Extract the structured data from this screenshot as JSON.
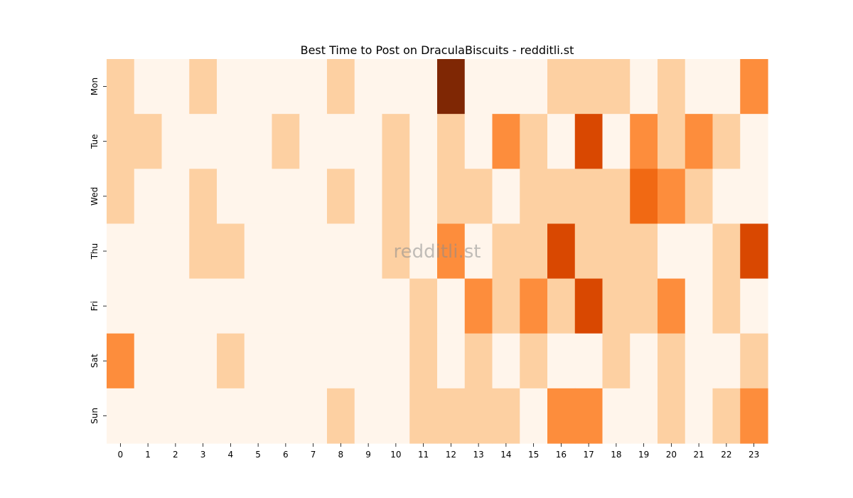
{
  "chart_data": {
    "type": "heatmap",
    "title": "Best Time to Post on DraculaBiscuits - redditli.st",
    "watermark": "redditli.st",
    "xlabel": "",
    "ylabel": "",
    "x_categories": [
      "0",
      "1",
      "2",
      "3",
      "4",
      "5",
      "6",
      "7",
      "8",
      "9",
      "10",
      "11",
      "12",
      "13",
      "14",
      "15",
      "16",
      "17",
      "18",
      "19",
      "20",
      "21",
      "22",
      "23"
    ],
    "y_categories": [
      "Mon",
      "Tue",
      "Wed",
      "Thu",
      "Fri",
      "Sat",
      "Sun"
    ],
    "values": [
      [
        1,
        0,
        0,
        1,
        0,
        0,
        0,
        0,
        1,
        0,
        0,
        0,
        5,
        0,
        0,
        0,
        1,
        1,
        1,
        0,
        1,
        0,
        0,
        2
      ],
      [
        1,
        1,
        0,
        0,
        0,
        0,
        1,
        0,
        0,
        0,
        1,
        0,
        1,
        0,
        2,
        1,
        0,
        4,
        0,
        2,
        1,
        2,
        1,
        0
      ],
      [
        1,
        0,
        0,
        1,
        0,
        0,
        0,
        0,
        1,
        0,
        1,
        0,
        1,
        1,
        0,
        1,
        1,
        1,
        1,
        3,
        2,
        1,
        0,
        0
      ],
      [
        0,
        0,
        0,
        1,
        1,
        0,
        0,
        0,
        0,
        0,
        1,
        0,
        2,
        0,
        1,
        1,
        4,
        1,
        1,
        1,
        0,
        0,
        1,
        4
      ],
      [
        0,
        0,
        0,
        0,
        0,
        0,
        0,
        0,
        0,
        0,
        0,
        1,
        0,
        2,
        1,
        2,
        1,
        4,
        1,
        1,
        2,
        0,
        1,
        0
      ],
      [
        2,
        0,
        0,
        0,
        1,
        0,
        0,
        0,
        0,
        0,
        0,
        1,
        0,
        1,
        0,
        1,
        0,
        0,
        1,
        0,
        1,
        0,
        0,
        1
      ],
      [
        0,
        0,
        0,
        0,
        0,
        0,
        0,
        0,
        1,
        0,
        0,
        1,
        1,
        1,
        1,
        0,
        2,
        2,
        0,
        0,
        1,
        0,
        1,
        2
      ]
    ],
    "color_scale": [
      "#fff5eb",
      "#fdd0a2",
      "#fd8d3c",
      "#f16913",
      "#d94801",
      "#7f2704"
    ],
    "vmin": 0,
    "vmax": 5,
    "grid": false,
    "legend": "none"
  }
}
